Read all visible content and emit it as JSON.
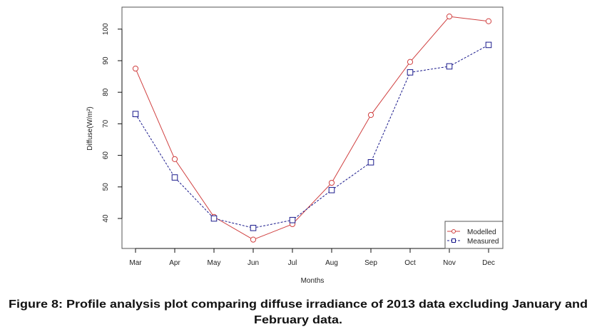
{
  "chart_data": {
    "type": "line",
    "title": "",
    "xlabel": "Months",
    "ylabel": "Diffuse(W/m²)",
    "categories": [
      "Mar",
      "Apr",
      "May",
      "Jun",
      "Jul",
      "Aug",
      "Sep",
      "Oct",
      "Nov",
      "Dec"
    ],
    "yticks": [
      40,
      50,
      60,
      70,
      80,
      90,
      100
    ],
    "ylim": [
      31,
      107
    ],
    "grid": false,
    "legend_position": "bottom-right",
    "series": [
      {
        "name": "Modelled",
        "color": "#d04040",
        "marker": "circle",
        "line": "solid",
        "values": [
          87.5,
          58.8,
          40.5,
          33.3,
          38.2,
          51.3,
          72.8,
          89.6,
          104.0,
          102.5
        ]
      },
      {
        "name": "Measured",
        "color": "#1a1a8c",
        "marker": "square",
        "line": "dashed",
        "values": [
          73.1,
          53.0,
          40.0,
          37.0,
          39.5,
          49.0,
          57.8,
          86.3,
          88.2,
          95.0
        ]
      }
    ]
  },
  "caption": {
    "line1": "Figure 8: Profile analysis plot comparing diffuse irradiance of 2013 data excluding January and",
    "line2": "February data."
  }
}
